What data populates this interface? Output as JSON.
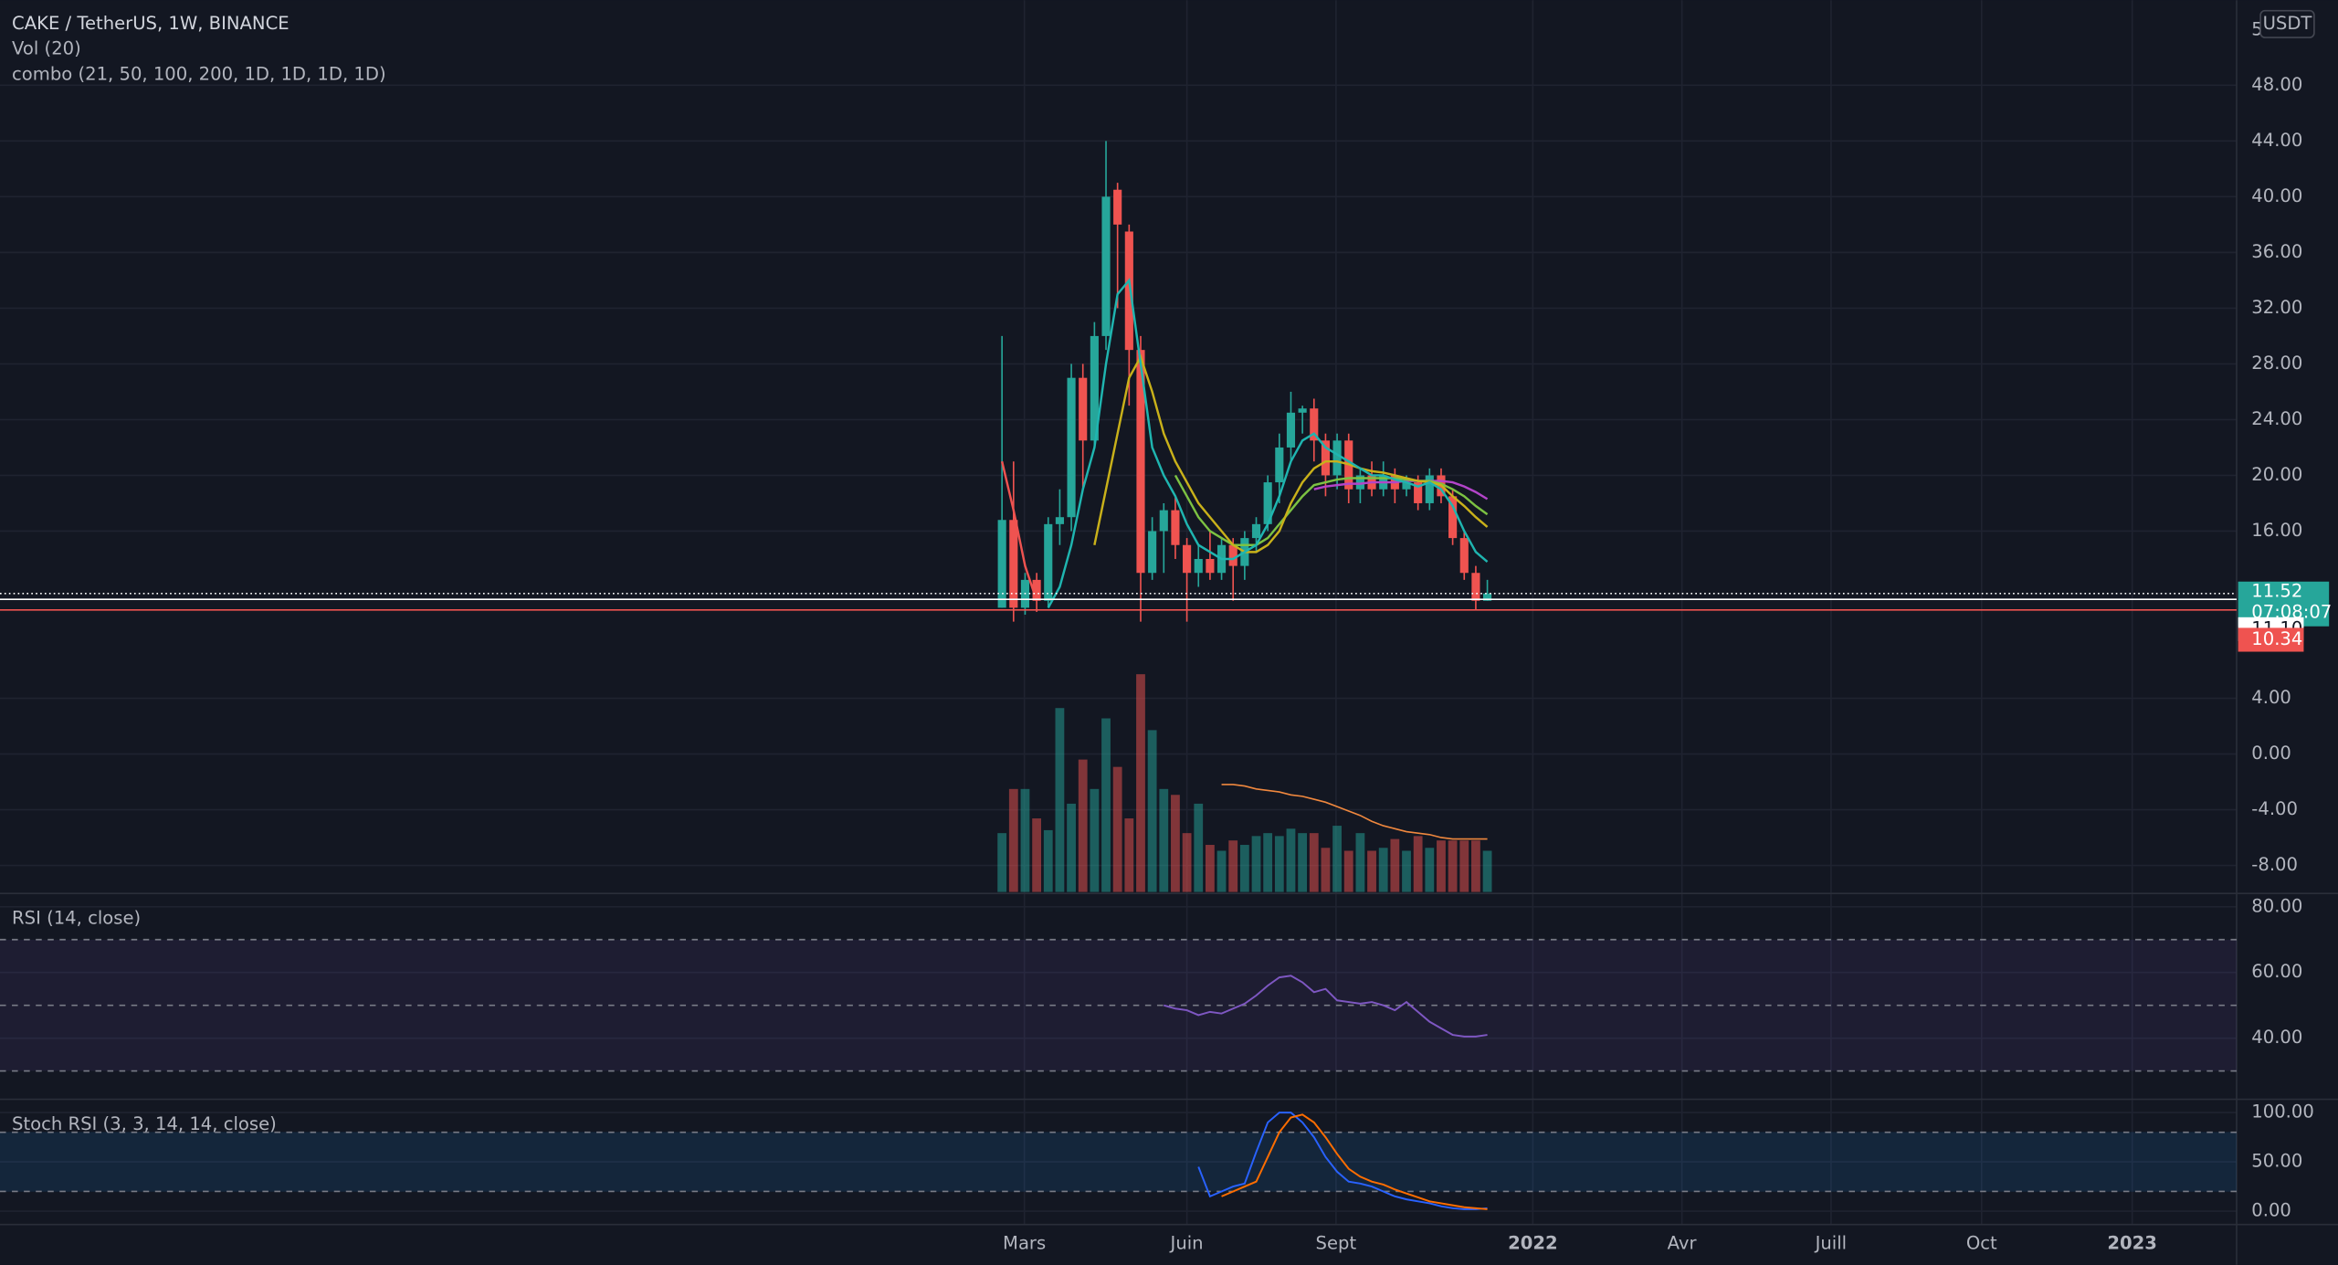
{
  "header": {
    "symbol": "CAKE / TetherUS, 1W, BINANCE",
    "vol": "Vol (20)",
    "combo": "combo (21, 50, 100, 200, 1D, 1D, 1D, 1D)",
    "corner": "5",
    "currency": "USDT"
  },
  "price": {
    "ylim": [
      -9.9,
      54.1
    ],
    "yticks": [
      {
        "value": 48,
        "label": "48.00"
      },
      {
        "value": 44,
        "label": "44.00"
      },
      {
        "value": 40,
        "label": "40.00"
      },
      {
        "value": 36,
        "label": "36.00"
      },
      {
        "value": 32,
        "label": "32.00"
      },
      {
        "value": 28,
        "label": "28.00"
      },
      {
        "value": 24,
        "label": "24.00"
      },
      {
        "value": 20,
        "label": "20.00"
      },
      {
        "value": 16,
        "label": "16.00"
      },
      {
        "value": 4,
        "label": "4.00"
      },
      {
        "value": 0,
        "label": "0.00"
      },
      {
        "value": -4,
        "label": "-4.00"
      },
      {
        "value": -8,
        "label": "-8.00"
      }
    ],
    "candles": {
      "open": [
        10.5,
        16.8,
        10.5,
        12.5,
        11,
        16.5,
        17,
        27,
        22.5,
        30,
        40.5,
        37.5,
        29,
        13,
        16,
        17.5,
        15,
        13,
        14,
        13,
        15,
        13.5,
        15.5,
        16.5,
        19.5,
        22,
        24.5,
        24.8,
        22.5,
        20,
        22.5,
        19,
        20,
        19,
        20,
        19,
        19.5,
        18,
        20,
        18.5,
        15.5,
        13,
        11
      ],
      "high": [
        30,
        21,
        13,
        13,
        17,
        19,
        28,
        28,
        31,
        44,
        41,
        38,
        30,
        17,
        18,
        18.5,
        15.5,
        15,
        16,
        15.5,
        15.5,
        16,
        17,
        20,
        23,
        26,
        25,
        25.5,
        23,
        23,
        23,
        20.5,
        21,
        21,
        20.5,
        20,
        20,
        20.5,
        20.5,
        19,
        16,
        13.5,
        12.5
      ],
      "low": [
        10.5,
        9.5,
        10,
        10.2,
        10.5,
        15,
        16,
        19,
        22,
        29,
        32,
        25,
        9.5,
        12.5,
        13,
        14,
        9.5,
        12,
        12.5,
        12.5,
        11,
        12.5,
        14.5,
        16,
        18,
        21,
        23,
        21,
        18.5,
        19,
        18,
        18,
        18.5,
        18.5,
        18,
        18.5,
        17.5,
        17.5,
        18,
        15,
        12.5,
        10.3,
        11
      ],
      "close": [
        16.8,
        10.5,
        12.5,
        11,
        16.5,
        17,
        27,
        22.5,
        30,
        40,
        38,
        29,
        13,
        16,
        17.5,
        15,
        13,
        14,
        13,
        15,
        13.5,
        15.5,
        16.5,
        19.5,
        22,
        24.5,
        24.8,
        22.5,
        20,
        22.5,
        19,
        20,
        19,
        20,
        19,
        19.5,
        18,
        20,
        18.5,
        15.5,
        13,
        11,
        11.52
      ]
    },
    "ma": [
      {
        "color": "#ef5350",
        "values": [
          21,
          17.5,
          13.5,
          11,
          null,
          null,
          null,
          null,
          null,
          null,
          null,
          null,
          null,
          null,
          null,
          null,
          null,
          null,
          null,
          null,
          null,
          null,
          null,
          null,
          null,
          null,
          null,
          null,
          null,
          null,
          null,
          null,
          null,
          null,
          null,
          null,
          null,
          null,
          null,
          null,
          null,
          null,
          null
        ]
      },
      {
        "color": "#b344c9",
        "values": [
          null,
          null,
          null,
          null,
          null,
          null,
          null,
          null,
          null,
          null,
          null,
          null,
          null,
          null,
          null,
          null,
          null,
          null,
          null,
          null,
          null,
          null,
          null,
          null,
          null,
          null,
          null,
          19,
          19.2,
          19.3,
          19.4,
          19.4,
          19.5,
          19.5,
          19.5,
          19.6,
          19.6,
          19.6,
          19.6,
          19.5,
          19.2,
          18.8,
          18.3
        ]
      },
      {
        "color": "#7cc242",
        "values": [
          null,
          null,
          null,
          null,
          null,
          null,
          null,
          null,
          null,
          null,
          null,
          null,
          null,
          null,
          null,
          20,
          18.5,
          17,
          16,
          15.5,
          15,
          15,
          15,
          15.5,
          16.5,
          17.5,
          18.5,
          19.3,
          19.5,
          19.7,
          19.8,
          19.8,
          19.8,
          19.8,
          19.8,
          19.7,
          19.6,
          19.6,
          19.4,
          19,
          18.5,
          17.8,
          17.2
        ]
      },
      {
        "color": "#c9b11a",
        "values": [
          null,
          null,
          null,
          null,
          null,
          null,
          null,
          null,
          15,
          19,
          23,
          27,
          28.5,
          26,
          23,
          21,
          19.5,
          18,
          17,
          16,
          15,
          14.5,
          14.5,
          15,
          16,
          18,
          19.5,
          20.5,
          21,
          21,
          20.8,
          20.5,
          20.3,
          20.2,
          20,
          19.8,
          19.6,
          19.5,
          19.3,
          18.5,
          17.8,
          17,
          16.3
        ]
      },
      {
        "color": "#1fb5b0",
        "values": [
          null,
          null,
          null,
          null,
          10.5,
          12,
          15,
          19,
          22,
          28,
          33,
          34,
          28,
          22,
          20,
          18.5,
          16.5,
          15,
          14.5,
          14,
          14,
          14.5,
          15,
          16.5,
          18.5,
          21,
          22.5,
          23,
          22,
          21.5,
          21,
          20.5,
          20,
          20,
          19.7,
          19.5,
          19.2,
          19.5,
          19,
          17.8,
          16,
          14.5,
          13.8
        ]
      }
    ],
    "last": {
      "value": 11.52,
      "countdown": "07:08:07"
    },
    "levels": [
      {
        "value": 11.1,
        "label": "11.10",
        "color": "#ffffff"
      },
      {
        "value": 10.34,
        "label": "10.34",
        "color": "#ef5350"
      }
    ]
  },
  "volume": {
    "vlim": [
      0,
      150
    ],
    "values": [
      40,
      70,
      70,
      50,
      42,
      125,
      60,
      90,
      70,
      118,
      85,
      50,
      148,
      110,
      70,
      66,
      40,
      60,
      32,
      28,
      35,
      32,
      38,
      40,
      38,
      43,
      40,
      40,
      30,
      45,
      28,
      40,
      28,
      30,
      36,
      28,
      38,
      30,
      35,
      35,
      35,
      35,
      28
    ],
    "ma": [
      null,
      null,
      null,
      null,
      null,
      null,
      null,
      null,
      null,
      null,
      null,
      null,
      null,
      null,
      null,
      null,
      null,
      null,
      null,
      73,
      73,
      72,
      70,
      69,
      68,
      66,
      65,
      63,
      61,
      58,
      55,
      52,
      48,
      45,
      43,
      41,
      40,
      39,
      37,
      36,
      36,
      36,
      36
    ]
  },
  "rsi": {
    "title": "RSI (14, close)",
    "ylim": [
      21.4,
      83.6
    ],
    "yticks": [
      {
        "value": 80,
        "label": "80.00"
      },
      {
        "value": 60,
        "label": "60.00"
      },
      {
        "value": 40,
        "label": "40.00"
      }
    ],
    "bands": [
      70,
      50,
      30
    ],
    "values": [
      null,
      null,
      null,
      null,
      null,
      null,
      null,
      null,
      null,
      null,
      null,
      null,
      null,
      null,
      50,
      49,
      48.5,
      47,
      48,
      47.5,
      49,
      50.5,
      53,
      56,
      58.5,
      59,
      57,
      54,
      55,
      51.5,
      51,
      50.5,
      51,
      50,
      48.5,
      51,
      48,
      45,
      43,
      41,
      40.5,
      40.5,
      41
    ]
  },
  "stoch": {
    "title": "Stoch RSI (3, 3, 14, 14, close)",
    "ylim": [
      -12,
      112
    ],
    "yticks": [
      {
        "value": 100,
        "label": "100.00"
      },
      {
        "value": 50,
        "label": "50.00"
      },
      {
        "value": 0,
        "label": "0.00"
      }
    ],
    "bands": [
      80,
      20
    ],
    "k": [
      null,
      null,
      null,
      null,
      null,
      null,
      null,
      null,
      null,
      null,
      null,
      null,
      null,
      null,
      null,
      null,
      null,
      45,
      15,
      20,
      25,
      28,
      60,
      90,
      100,
      100,
      90,
      75,
      55,
      40,
      30,
      28,
      25,
      20,
      15,
      12,
      10,
      8,
      5,
      3,
      2,
      2,
      3
    ],
    "d": [
      null,
      null,
      null,
      null,
      null,
      null,
      null,
      null,
      null,
      null,
      null,
      null,
      null,
      null,
      null,
      null,
      null,
      null,
      null,
      15,
      20,
      25,
      30,
      55,
      80,
      95,
      98,
      90,
      75,
      58,
      43,
      35,
      30,
      27,
      22,
      18,
      14,
      10,
      8,
      6,
      4,
      3,
      2
    ]
  },
  "xaxis": [
    "Mars",
    "Juin",
    "Sept",
    "2022",
    "Avr",
    "Juill",
    "Oct",
    "2023"
  ]
}
